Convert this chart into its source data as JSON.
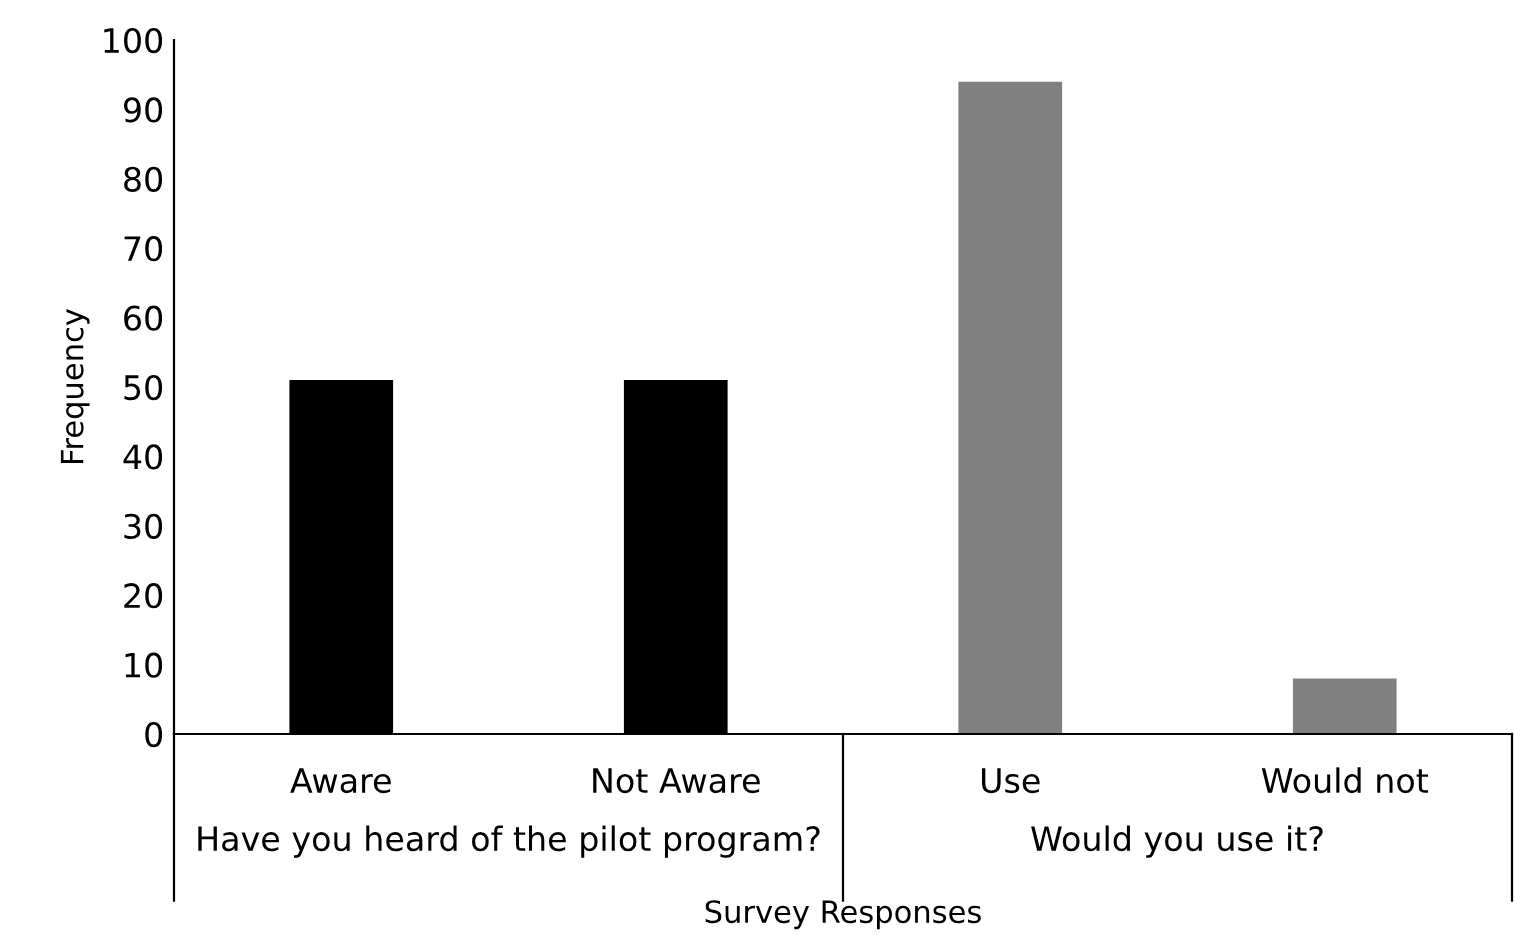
{
  "chart_data": {
    "type": "bar",
    "xlabel": "Survey Responses",
    "ylabel": "Frequency",
    "categories": [
      "Aware",
      "Not Aware",
      "Use",
      "Would not"
    ],
    "values": [
      51,
      51,
      94,
      8
    ],
    "colors": [
      "#000000",
      "#000000",
      "#808080",
      "#808080"
    ],
    "ylim": [
      0,
      100
    ],
    "yticks": [
      0,
      10,
      20,
      30,
      40,
      50,
      60,
      70,
      80,
      90,
      100
    ],
    "grid": false,
    "annotations": [
      "Have you heard of the pilot program?",
      "Would you use it?"
    ]
  }
}
